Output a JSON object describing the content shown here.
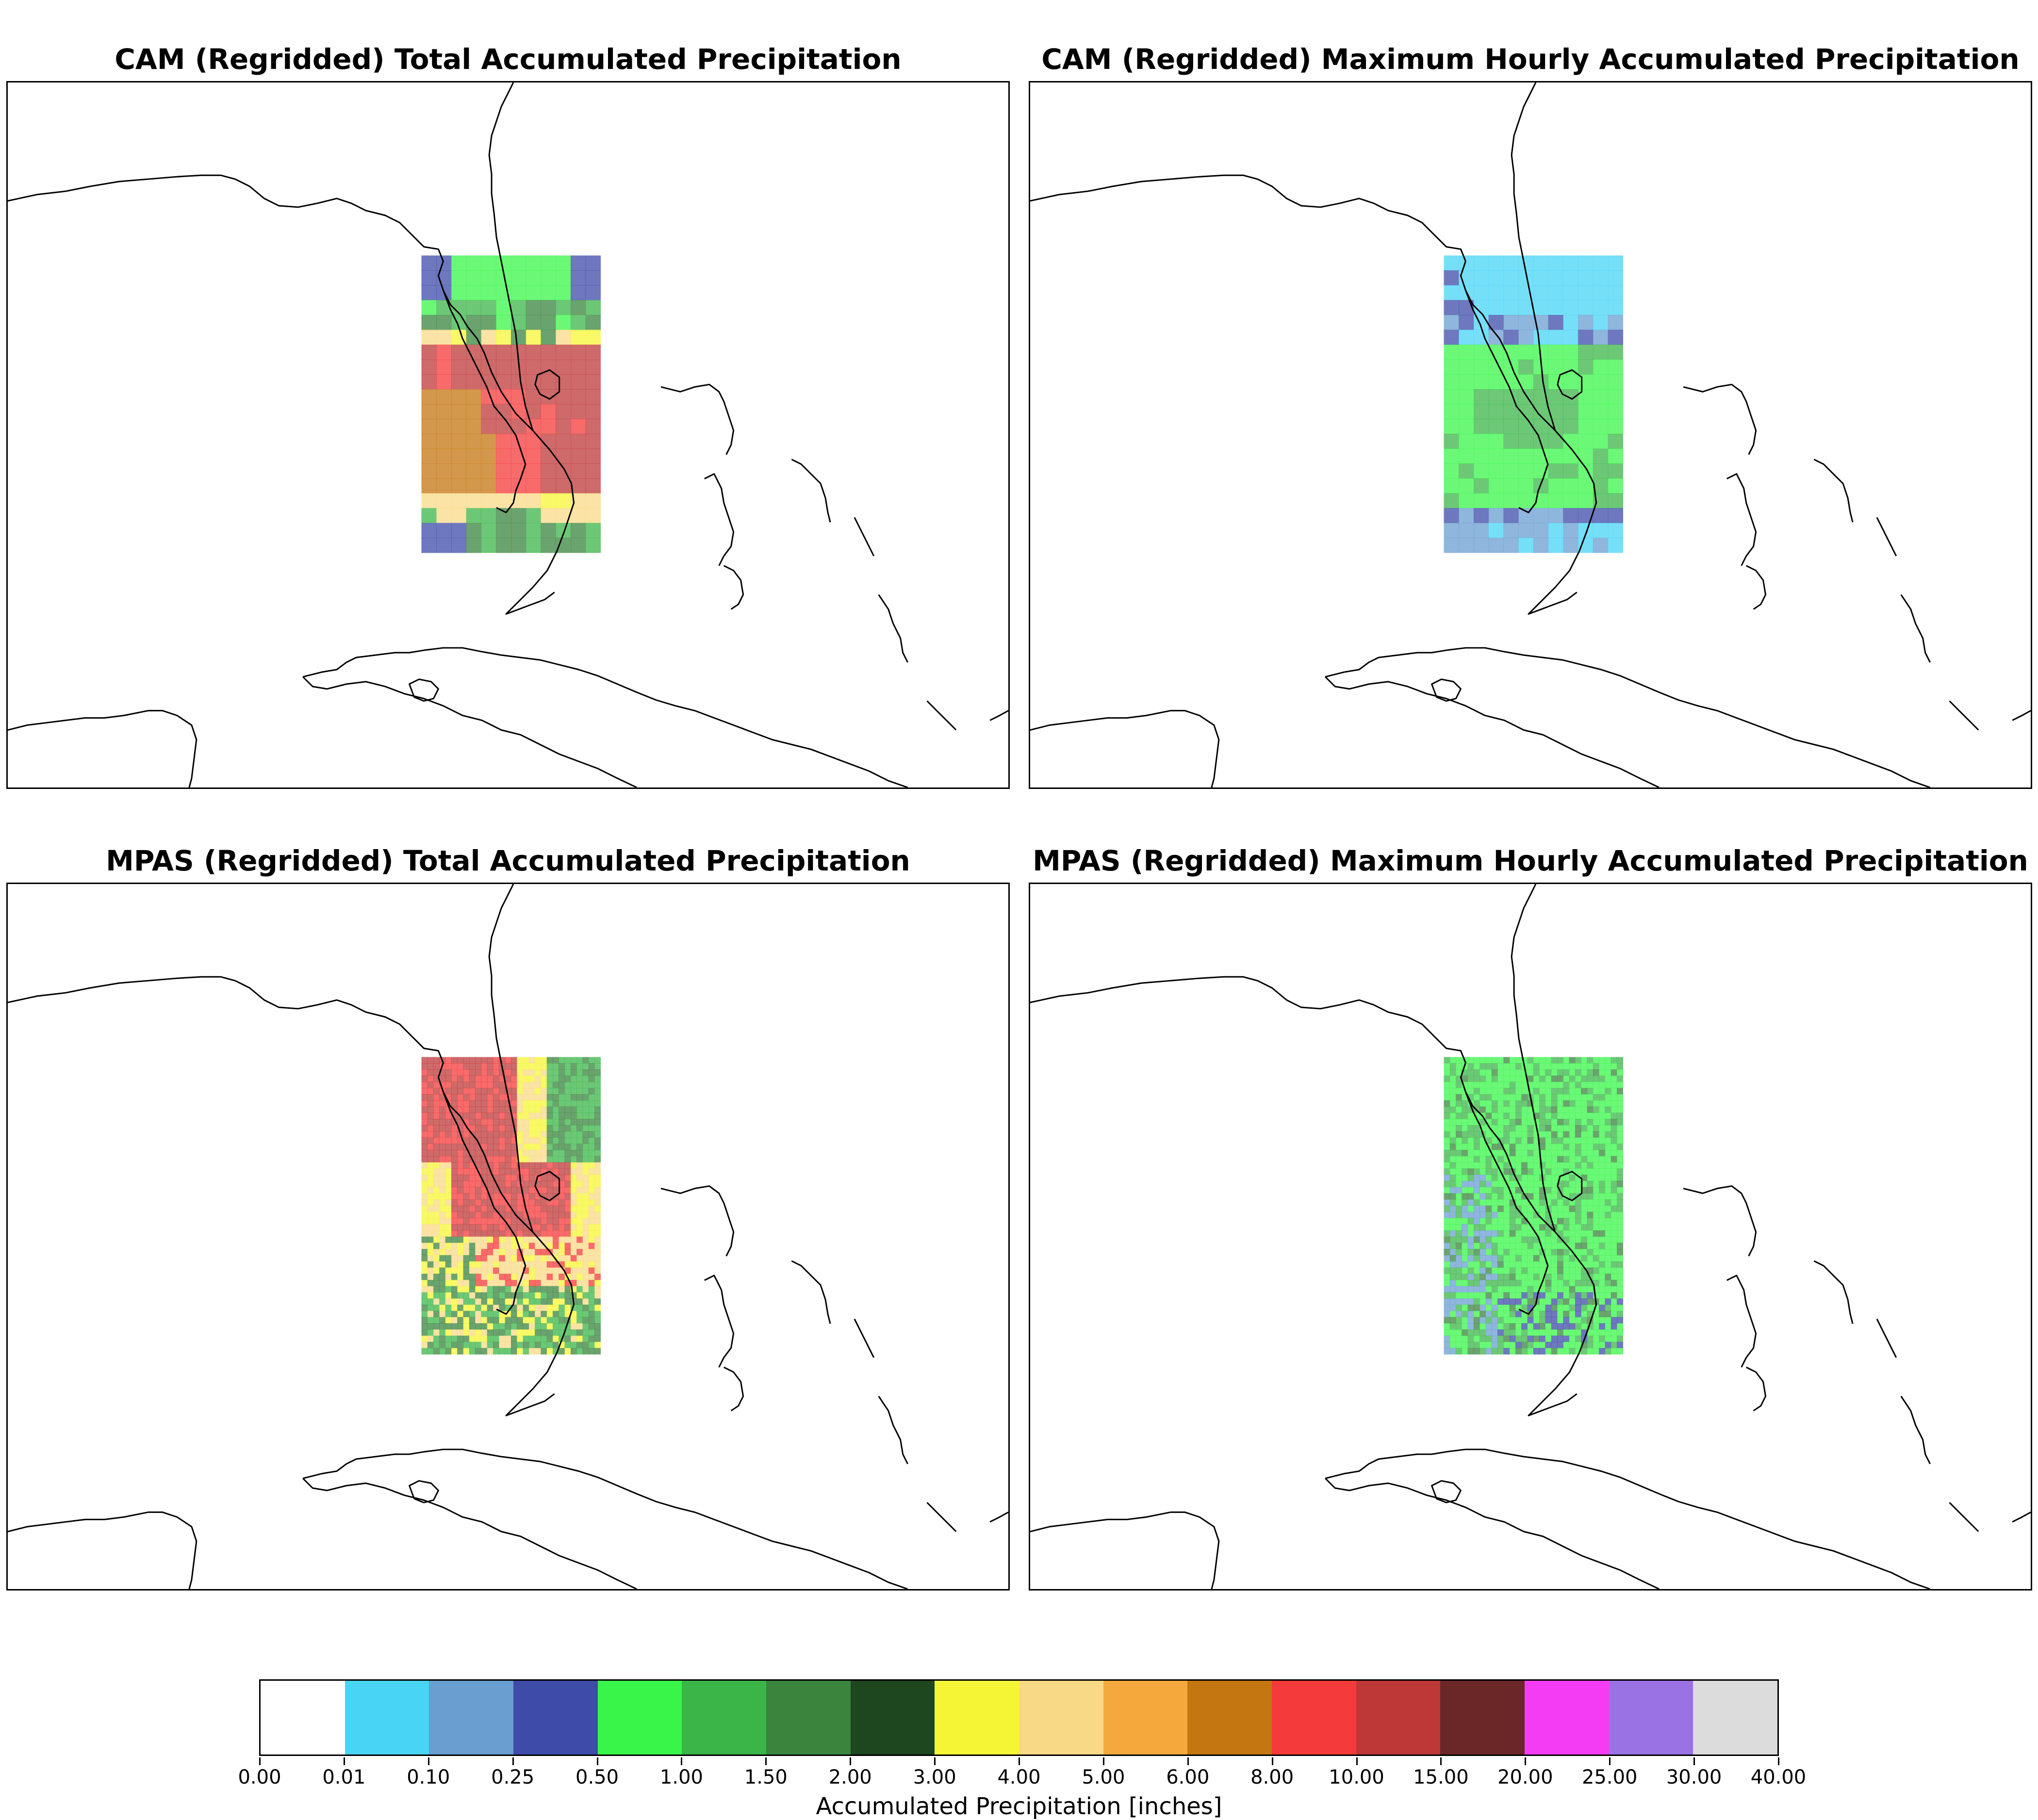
{
  "panels": [
    {
      "title": "CAM (Regridded) Total Accumulated Precipitation",
      "field": "cam-total"
    },
    {
      "title": "CAM (Regridded) Maximum Hourly Accumulated Precipitation",
      "field": "cam-max-hourly"
    },
    {
      "title": "MPAS (Regridded) Total Accumulated Precipitation",
      "field": "mpas-total"
    },
    {
      "title": "MPAS (Regridded) Maximum Hourly Accumulated Precipitation",
      "field": "mpas-max-hourly"
    }
  ],
  "colorbar": {
    "label": "Accumulated Precipitation [inches]",
    "ticks": [
      "0.00",
      "0.01",
      "0.10",
      "0.25",
      "0.50",
      "1.00",
      "1.50",
      "2.00",
      "3.00",
      "4.00",
      "5.00",
      "6.00",
      "8.00",
      "10.00",
      "15.00",
      "20.00",
      "25.00",
      "30.00",
      "40.00"
    ],
    "colors": [
      "#ffffff",
      "#48d4f5",
      "#6a9dd0",
      "#3e4ba8",
      "#39f54a",
      "#3bb548",
      "#3a843e",
      "#1e461f",
      "#f5f536",
      "#f8da86",
      "#f5a93c",
      "#c47610",
      "#f43a3a",
      "#be3838",
      "#6b2727",
      "#f53cf5",
      "#9a72e3",
      "#dcdcdc"
    ]
  }
}
